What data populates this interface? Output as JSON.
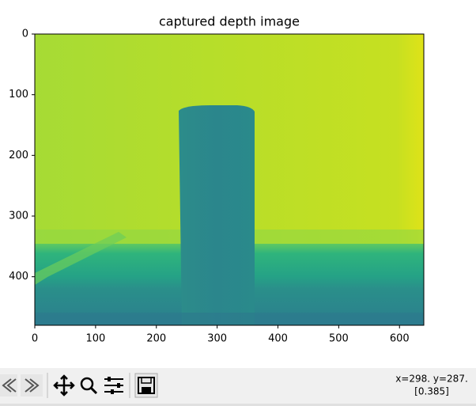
{
  "chart_data": {
    "type": "image",
    "title": "captured depth image",
    "xlim": [
      0,
      640
    ],
    "ylim": [
      480,
      0
    ],
    "xticks": [
      0,
      100,
      200,
      300,
      400,
      500,
      600
    ],
    "yticks": [
      0,
      100,
      200,
      300,
      400
    ]
  },
  "status": {
    "coords": "x=298. y=287.",
    "value": "[0.385]"
  }
}
